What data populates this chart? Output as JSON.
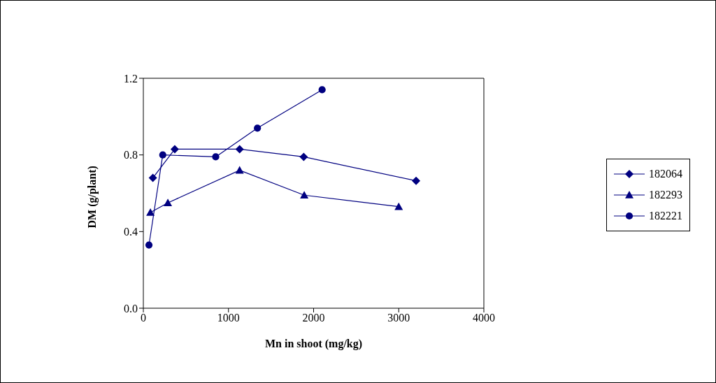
{
  "chart_data": {
    "type": "line",
    "xlabel": "Mn in shoot (mg/kg)",
    "ylabel": "DM (g/plant)",
    "xlim": [
      0,
      4000
    ],
    "xticks": [
      0,
      1000,
      2000,
      3000,
      4000
    ],
    "ylim": [
      0,
      1.2
    ],
    "yticks": [
      {
        "value": 0,
        "label": "0.0"
      },
      {
        "value": 0.4,
        "label": "0.4"
      },
      {
        "value": 0.8,
        "label": "0.8"
      },
      {
        "value": 1.2,
        "label": "1.2"
      }
    ],
    "grid": false,
    "legend": "right",
    "series": [
      {
        "name": "182064",
        "color": "#000080",
        "marker": "diamond",
        "x": [
          112,
          369,
          1131,
          1884,
          3204
        ],
        "values": [
          0.68,
          0.83,
          0.83,
          0.79,
          0.665
        ]
      },
      {
        "name": "182293",
        "color": "#000080",
        "marker": "triangle",
        "x": [
          83,
          288,
          1131,
          1890,
          3000
        ],
        "values": [
          0.5,
          0.55,
          0.72,
          0.59,
          0.53
        ]
      },
      {
        "name": "182221",
        "color": "#000080",
        "marker": "circle",
        "x": [
          66,
          228,
          850,
          1340,
          2100
        ],
        "values": [
          0.33,
          0.8,
          0.79,
          0.94,
          1.14
        ]
      }
    ]
  }
}
